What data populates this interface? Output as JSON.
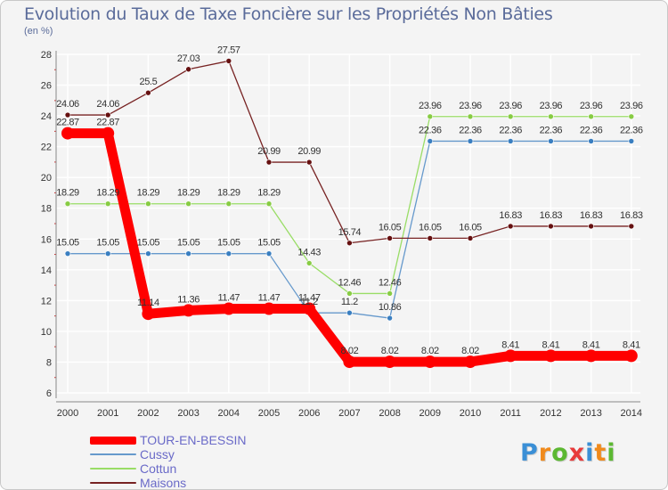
{
  "chart_data": {
    "type": "line",
    "title": "Evolution du Taux de Taxe Foncière sur les Propriétés Non Bâties",
    "ylabel": "(en %)",
    "xlabel": "",
    "categories": [
      "2000",
      "2001",
      "2002",
      "2003",
      "2004",
      "2005",
      "2006",
      "2007",
      "2008",
      "2009",
      "2010",
      "2011",
      "2012",
      "2013",
      "2014"
    ],
    "ylim": [
      6,
      28
    ],
    "yticks": [
      6,
      8,
      10,
      12,
      14,
      16,
      18,
      20,
      22,
      24,
      26,
      28
    ],
    "grid": true,
    "legend": "bottom-left",
    "series": [
      {
        "name": "Cussy",
        "color": "#6699cc",
        "marker": "#3a7fc1",
        "values": [
          15.05,
          15.05,
          15.05,
          15.05,
          15.05,
          15.05,
          11.2,
          11.2,
          10.86,
          22.36,
          22.36,
          22.36,
          22.36,
          22.36,
          22.36
        ],
        "labels": [
          "15.05",
          "15.05",
          "15.05",
          "15.05",
          "15.05",
          "15.05",
          "11.2",
          "11.2",
          "10.86",
          "22.36",
          "22.36",
          "22.36",
          "22.36",
          "22.36",
          "22.36"
        ]
      },
      {
        "name": "Cottun",
        "color": "#99dd66",
        "marker": "#88cc44",
        "values": [
          18.29,
          18.29,
          18.29,
          18.29,
          18.29,
          18.29,
          14.43,
          12.46,
          12.46,
          23.96,
          23.96,
          23.96,
          23.96,
          23.96,
          23.96
        ],
        "labels": [
          "18.29",
          "18.29",
          "18.29",
          "18.29",
          "18.29",
          "18.29",
          "14.43",
          "12.46",
          "12.46",
          "23.96",
          "23.96",
          "23.96",
          "23.96",
          "23.96",
          "23.96"
        ]
      },
      {
        "name": "Maisons",
        "color": "#772222",
        "marker": "#661111",
        "values": [
          24.06,
          24.06,
          25.5,
          27.03,
          27.57,
          20.99,
          20.99,
          15.74,
          16.05,
          16.05,
          16.05,
          16.83,
          16.83,
          16.83,
          16.83
        ],
        "labels": [
          "24.06",
          "24.06",
          "25.5",
          "27.03",
          "27.57",
          "20.99",
          "20.99",
          "15.74",
          "16.05",
          "16.05",
          "16.05",
          "16.83",
          "16.83",
          "16.83",
          "16.83"
        ]
      },
      {
        "name": "TOUR-EN-BESSIN",
        "color": "#ff0000",
        "marker": "#ff0000",
        "thick": true,
        "values": [
          22.87,
          22.87,
          11.14,
          11.36,
          11.47,
          11.47,
          11.47,
          8.02,
          8.02,
          8.02,
          8.02,
          8.41,
          8.41,
          8.41,
          8.41
        ],
        "labels": [
          "22.87",
          "22.87",
          "11.14",
          "11.36",
          "11.47",
          "11.47",
          "11.47",
          "8.02",
          "8.02",
          "8.02",
          "8.02",
          "8.41",
          "8.41",
          "8.41",
          "8.41"
        ]
      }
    ],
    "legend_order": [
      "TOUR-EN-BESSIN",
      "Cussy",
      "Cottun",
      "Maisons"
    ]
  },
  "logo": {
    "letters": [
      "P",
      "r",
      "o",
      "x",
      "i",
      "t",
      "i"
    ],
    "colors": [
      "#3a8fd6",
      "#f08a1c",
      "#5cb832",
      "#e83a3a",
      "#3a8fd6",
      "#f08a1c",
      "#5cb832"
    ]
  }
}
